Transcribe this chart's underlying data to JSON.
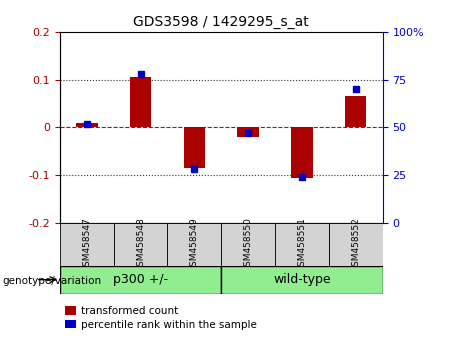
{
  "title": "GDS3598 / 1429295_s_at",
  "samples": [
    "GSM458547",
    "GSM458548",
    "GSM458549",
    "GSM458550",
    "GSM458551",
    "GSM458552"
  ],
  "red_values": [
    0.01,
    0.105,
    -0.085,
    -0.02,
    -0.105,
    0.065
  ],
  "blue_values": [
    52,
    78,
    28,
    47,
    24,
    70
  ],
  "group_label": "genotype/variation",
  "groups": [
    {
      "label": "p300 +/-",
      "start": 0,
      "end": 3
    },
    {
      "label": "wild-type",
      "start": 3,
      "end": 6
    }
  ],
  "ylim_left": [
    -0.2,
    0.2
  ],
  "ylim_right": [
    0,
    100
  ],
  "yticks_left": [
    -0.2,
    -0.1,
    0.0,
    0.1,
    0.2
  ],
  "yticks_right": [
    0,
    25,
    50,
    75,
    100
  ],
  "red_color": "#AA0000",
  "blue_color": "#0000CC",
  "zero_line_color": "#CC0000",
  "dotted_line_color": "#333333",
  "bar_width": 0.4,
  "sample_box_color": "#D3D3D3",
  "group_box_color": "#90EE90",
  "legend_red_label": "transformed count",
  "legend_blue_label": "percentile rank within the sample"
}
